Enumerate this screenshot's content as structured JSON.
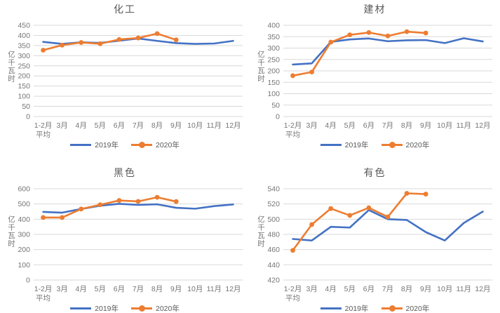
{
  "colors": {
    "series_2019": "#4472C4",
    "series_2020": "#ED7D31",
    "gridline": "#D9D9D9",
    "tick_label": "#757575",
    "title_text": "#595959",
    "background": "#FFFFFF"
  },
  "chart_data": [
    {
      "type": "line",
      "title": "化工",
      "ylabel": "亿千瓦时",
      "xlabel": "",
      "ylim": [
        0,
        450
      ],
      "ytick_step": 50,
      "grid": true,
      "legend_position": "bottom",
      "categories": [
        "1-2月\n平均",
        "3月",
        "4月",
        "5月",
        "6月",
        "7月",
        "8月",
        "9月",
        "10月",
        "11月",
        "12月"
      ],
      "series": [
        {
          "name": "2019年",
          "color": "#4472C4",
          "marker": false,
          "values": [
            368,
            358,
            366,
            363,
            374,
            385,
            373,
            362,
            358,
            360,
            373
          ]
        },
        {
          "name": "2020年",
          "color": "#ED7D31",
          "marker": true,
          "values": [
            327,
            352,
            365,
            359,
            380,
            387,
            409,
            378,
            null,
            null,
            null
          ]
        }
      ]
    },
    {
      "type": "line",
      "title": "建材",
      "ylabel": "亿千瓦时",
      "xlabel": "",
      "ylim": [
        0,
        400
      ],
      "ytick_step": 50,
      "grid": true,
      "legend_position": "bottom",
      "categories": [
        "1-2月\n平均",
        "3月",
        "4月",
        "5月",
        "6月",
        "7月",
        "8月",
        "9月",
        "10月",
        "11月",
        "12月"
      ],
      "series": [
        {
          "name": "2019年",
          "color": "#4472C4",
          "marker": false,
          "values": [
            228,
            233,
            327,
            338,
            342,
            330,
            334,
            335,
            322,
            343,
            329
          ]
        },
        {
          "name": "2020年",
          "color": "#ED7D31",
          "marker": true,
          "values": [
            179,
            195,
            326,
            358,
            368,
            353,
            372,
            366,
            null,
            null,
            null
          ]
        }
      ]
    },
    {
      "type": "line",
      "title": "黑色",
      "ylabel": "亿千瓦时",
      "xlabel": "",
      "ylim": [
        0,
        600
      ],
      "ytick_step": 100,
      "grid": true,
      "legend_position": "bottom",
      "categories": [
        "1-2月\n平均",
        "3月",
        "4月",
        "5月",
        "6月",
        "7月",
        "8月",
        "9月",
        "10月",
        "11月",
        "12月"
      ],
      "series": [
        {
          "name": "2019年",
          "color": "#4472C4",
          "marker": false,
          "values": [
            448,
            443,
            467,
            489,
            501,
            494,
            498,
            475,
            469,
            486,
            497
          ]
        },
        {
          "name": "2020年",
          "color": "#ED7D31",
          "marker": true,
          "values": [
            411,
            411,
            467,
            495,
            523,
            517,
            544,
            516,
            null,
            null,
            null
          ]
        }
      ]
    },
    {
      "type": "line",
      "title": "有色",
      "ylabel": "亿千瓦时",
      "xlabel": "",
      "ylim": [
        420,
        540
      ],
      "ytick_step": 20,
      "grid": true,
      "legend_position": "bottom",
      "categories": [
        "1-2月\n平均",
        "3月",
        "4月",
        "5月",
        "6月",
        "7月",
        "8月",
        "9月",
        "10月",
        "11月",
        "12月"
      ],
      "series": [
        {
          "name": "2019年",
          "color": "#4472C4",
          "marker": false,
          "values": [
            474,
            472,
            490,
            489,
            512,
            500,
            499,
            483,
            472,
            495,
            510
          ]
        },
        {
          "name": "2020年",
          "color": "#ED7D31",
          "marker": true,
          "values": [
            459,
            493,
            514,
            505,
            515,
            503,
            534,
            533,
            null,
            null,
            null
          ]
        }
      ]
    }
  ]
}
